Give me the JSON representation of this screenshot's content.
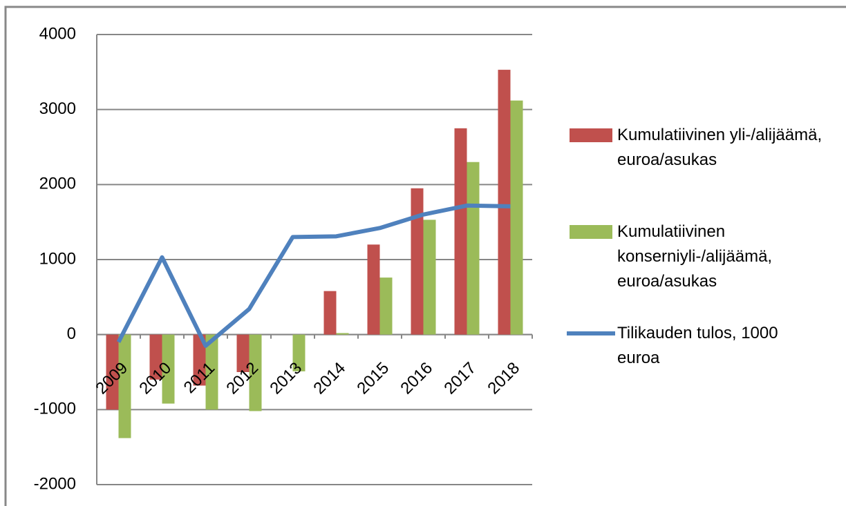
{
  "chart_data": {
    "type": "bar_line",
    "categories": [
      "2009",
      "2010",
      "2011",
      "2012",
      "2013",
      "2014",
      "2015",
      "2016",
      "2017",
      "2018"
    ],
    "series": [
      {
        "name": "Kumulatiivinen yli-/alijäämä, euroa/asukas",
        "color": "#c0504d",
        "type": "bar",
        "values": [
          -1000,
          -600,
          -680,
          -500,
          0,
          580,
          1200,
          1950,
          2750,
          3530
        ]
      },
      {
        "name": "Kumulatiivinen konserniyli-/alijäämä, euroa/asukas",
        "color": "#9bbb59",
        "type": "bar",
        "values": [
          -1380,
          -920,
          -1000,
          -1020,
          -490,
          20,
          760,
          1530,
          2300,
          3120
        ]
      },
      {
        "name": "Tilikauden tulos, 1000 euroa",
        "color": "#4f81bd",
        "type": "line",
        "values": [
          -100,
          1030,
          -150,
          340,
          1300,
          1310,
          1420,
          1600,
          1720,
          1710
        ]
      }
    ],
    "ylim": [
      -2000,
      4000
    ],
    "yticks": [
      -2000,
      -1000,
      0,
      1000,
      2000,
      3000,
      4000
    ],
    "grid": true
  }
}
